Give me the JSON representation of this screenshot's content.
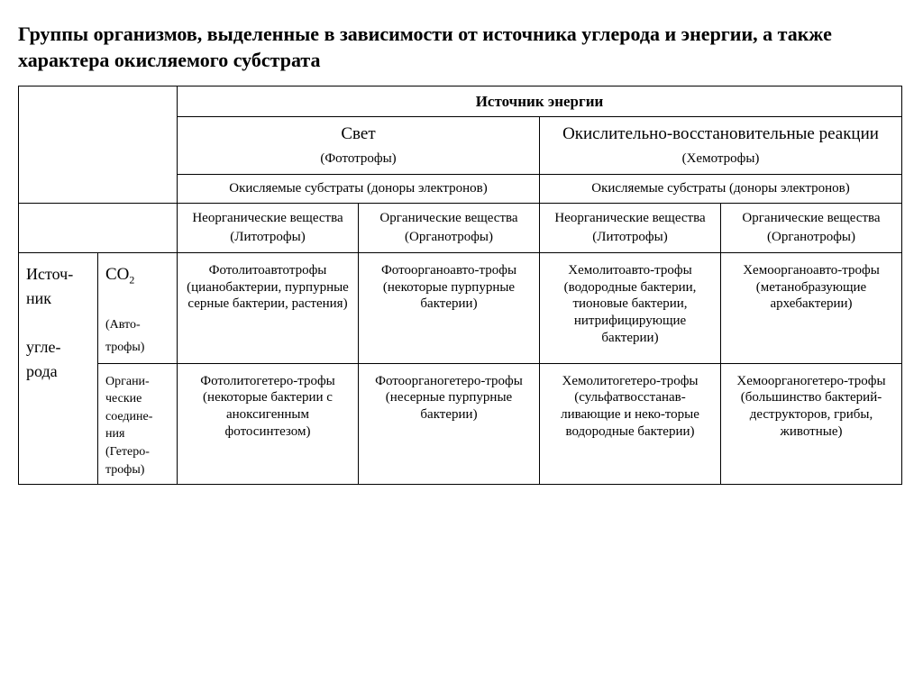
{
  "title": "Группы организмов, выделенные в зависимости от источника углерода и энергии, а также характера окисляемого субстрата",
  "header": {
    "energy_source": "Источник энергии",
    "light": "Свет",
    "light_sub": "(Фототрофы)",
    "redox": "Окислительно-восстановительные реакции",
    "redox_sub": "(Хемотрофы)",
    "oxidized_left": "Окисляемые субстраты (доноры электронов)",
    "oxidized_right": "Окисляемые субстраты (доноры электронов)",
    "inorg1": "Неорганические вещества",
    "inorg1_sub": "(Литотрофы)",
    "org1": "Органические вещества",
    "org1_sub": "(Органотрофы)",
    "inorg2": "Неорганические вещества",
    "inorg2_sub": "(Литотрофы)",
    "org2": "Органические вещества",
    "org2_sub": "(Органотрофы)"
  },
  "rows": {
    "carbon": "Источ-ник",
    "carbon2": "угле-рода",
    "co2": "CO",
    "co2_idx": "2",
    "auto": "(Авто-трофы)",
    "organic": "Органи-ческие соедине-ния",
    "hetero": "(Гетеро-трофы)"
  },
  "cells": {
    "a1": "Фотолитоавтотрофы (цианобактерии, пурпурные серные бактерии, растения)",
    "a2": "Фотоорганоавто-трофы",
    "a2b": "(некоторые пурпурные бактерии)",
    "a3": "Хемолитоавто-трофы (водородные бактерии, тионовые бактерии, нитрифицирующие бактерии)",
    "a4": "Хемоорганоавто-трофы (метанобразующие архебактерии)",
    "b1": "Фотолитогетеро-трофы",
    "b1b": "(некоторые бактерии с аноксигенным фотосинтезом)",
    "b2": "Фотоорганогетеро-трофы (несерные пурпурные бактерии)",
    "b3": "Хемолитогетеро-трофы (сульфатвосстанав-ливающие и неко-торые водородные бактерии)",
    "b4": "Хемоорганогетеро-трофы (большинство бактерий-деструкторов, грибы, животные)"
  }
}
